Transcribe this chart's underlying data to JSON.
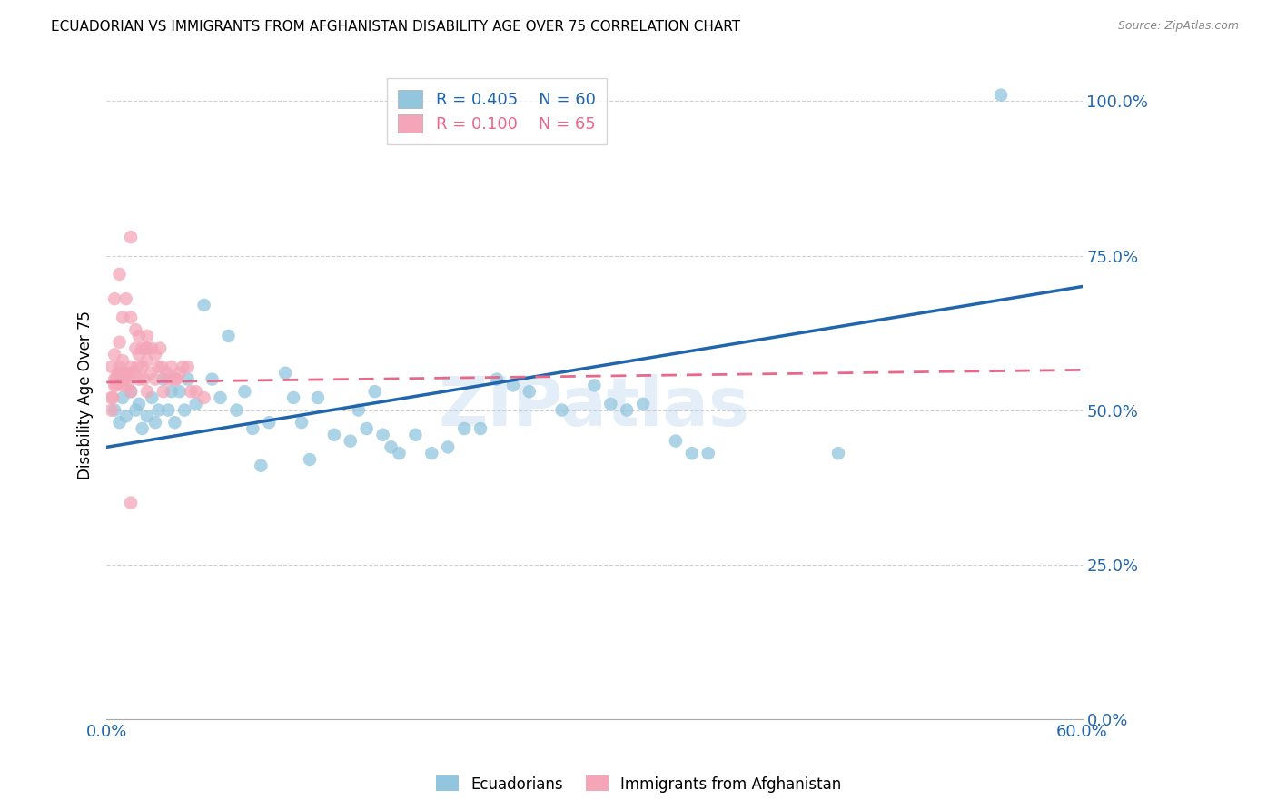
{
  "title": "ECUADORIAN VS IMMIGRANTS FROM AFGHANISTAN DISABILITY AGE OVER 75 CORRELATION CHART",
  "source": "Source: ZipAtlas.com",
  "ylabel": "Disability Age Over 75",
  "ytick_labels": [
    "0.0%",
    "25.0%",
    "50.0%",
    "75.0%",
    "100.0%"
  ],
  "ytick_values": [
    0.0,
    0.25,
    0.5,
    0.75,
    1.0
  ],
  "xlim": [
    0.0,
    0.6
  ],
  "ylim": [
    0.0,
    1.05
  ],
  "legend_label_blue": "Ecuadorians",
  "legend_label_pink": "Immigrants from Afghanistan",
  "watermark": "ZIPatlas",
  "blue_color": "#92c5de",
  "pink_color": "#f4a6b8",
  "line_blue": "#2166ac",
  "line_pink": "#e8688a",
  "blue_r": "0.405",
  "blue_n": "60",
  "pink_r": "0.100",
  "pink_n": "65",
  "blue_line_x0": 0.0,
  "blue_line_x1": 0.6,
  "blue_line_y0": 0.44,
  "blue_line_y1": 0.7,
  "pink_line_x0": 0.0,
  "pink_line_x1": 0.6,
  "pink_line_y0": 0.545,
  "pink_line_y1": 0.565,
  "blue_scatter_x": [
    0.005,
    0.008,
    0.01,
    0.012,
    0.015,
    0.018,
    0.02,
    0.022,
    0.025,
    0.028,
    0.03,
    0.032,
    0.035,
    0.038,
    0.04,
    0.042,
    0.045,
    0.048,
    0.05,
    0.055,
    0.06,
    0.065,
    0.07,
    0.075,
    0.08,
    0.085,
    0.09,
    0.095,
    0.1,
    0.11,
    0.115,
    0.12,
    0.125,
    0.13,
    0.14,
    0.15,
    0.155,
    0.16,
    0.165,
    0.17,
    0.175,
    0.18,
    0.19,
    0.2,
    0.21,
    0.22,
    0.23,
    0.24,
    0.25,
    0.26,
    0.28,
    0.3,
    0.31,
    0.32,
    0.33,
    0.35,
    0.36,
    0.37,
    0.45,
    0.55
  ],
  "blue_scatter_y": [
    0.5,
    0.48,
    0.52,
    0.49,
    0.53,
    0.5,
    0.51,
    0.47,
    0.49,
    0.52,
    0.48,
    0.5,
    0.55,
    0.5,
    0.53,
    0.48,
    0.53,
    0.5,
    0.55,
    0.51,
    0.67,
    0.55,
    0.52,
    0.62,
    0.5,
    0.53,
    0.47,
    0.41,
    0.48,
    0.56,
    0.52,
    0.48,
    0.42,
    0.52,
    0.46,
    0.45,
    0.5,
    0.47,
    0.53,
    0.46,
    0.44,
    0.43,
    0.46,
    0.43,
    0.44,
    0.47,
    0.47,
    0.55,
    0.54,
    0.53,
    0.5,
    0.54,
    0.51,
    0.5,
    0.51,
    0.45,
    0.43,
    0.43,
    0.43,
    1.01
  ],
  "pink_scatter_x": [
    0.003,
    0.005,
    0.006,
    0.008,
    0.009,
    0.01,
    0.011,
    0.012,
    0.013,
    0.015,
    0.015,
    0.017,
    0.018,
    0.019,
    0.02,
    0.02,
    0.022,
    0.023,
    0.024,
    0.025,
    0.025,
    0.027,
    0.028,
    0.03,
    0.03,
    0.032,
    0.033,
    0.034,
    0.035,
    0.037,
    0.038,
    0.04,
    0.042,
    0.043,
    0.045,
    0.047,
    0.05,
    0.052,
    0.055,
    0.06,
    0.003,
    0.004,
    0.005,
    0.006,
    0.007,
    0.008,
    0.009,
    0.01,
    0.012,
    0.014,
    0.005,
    0.008,
    0.01,
    0.012,
    0.015,
    0.018,
    0.02,
    0.022,
    0.025,
    0.015,
    0.003,
    0.005,
    0.008,
    0.015,
    0.025
  ],
  "pink_scatter_y": [
    0.52,
    0.54,
    0.55,
    0.57,
    0.56,
    0.58,
    0.55,
    0.56,
    0.54,
    0.57,
    0.53,
    0.56,
    0.6,
    0.57,
    0.55,
    0.59,
    0.57,
    0.55,
    0.6,
    0.58,
    0.62,
    0.56,
    0.6,
    0.59,
    0.55,
    0.57,
    0.6,
    0.57,
    0.53,
    0.56,
    0.55,
    0.57,
    0.55,
    0.55,
    0.56,
    0.57,
    0.57,
    0.53,
    0.53,
    0.52,
    0.5,
    0.52,
    0.55,
    0.54,
    0.56,
    0.55,
    0.55,
    0.54,
    0.55,
    0.56,
    0.68,
    0.72,
    0.65,
    0.68,
    0.65,
    0.63,
    0.62,
    0.6,
    0.6,
    0.78,
    0.57,
    0.59,
    0.61,
    0.35,
    0.53
  ]
}
